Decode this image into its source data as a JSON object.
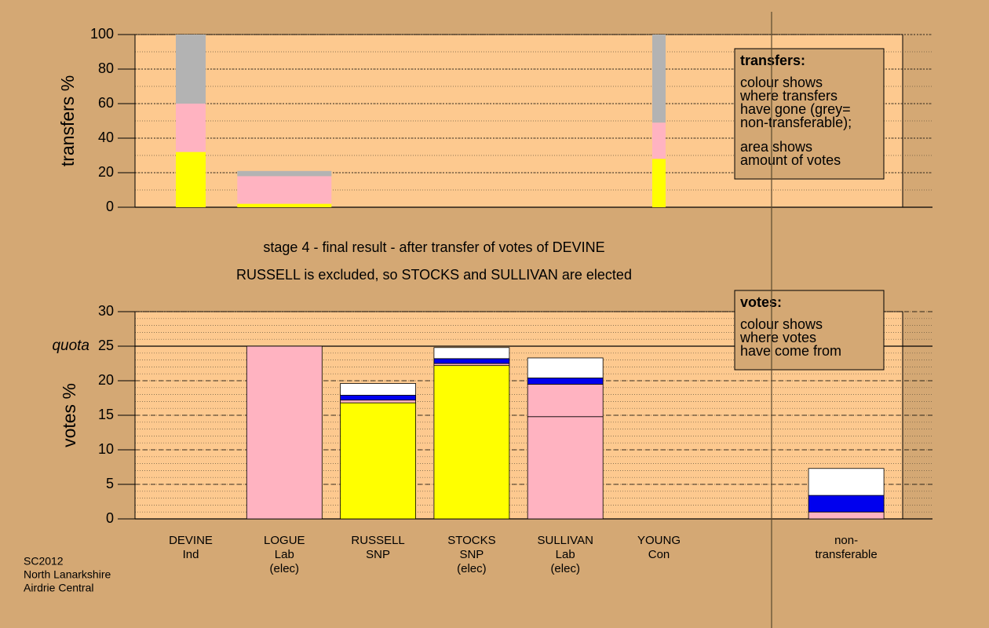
{
  "chart_data": [
    {
      "type": "stacked-bar",
      "y_label": "transfers %",
      "ylim": [
        0,
        100
      ],
      "yticks": [
        0,
        20,
        40,
        60,
        80,
        100
      ],
      "grid": true,
      "minor_grid_step": 10,
      "series": [
        {
          "color": "#ffff00",
          "values": [
            32,
            2,
            null,
            null,
            null,
            28,
            null,
            null
          ]
        },
        {
          "color": "#ffb3c1",
          "values": [
            28,
            16,
            null,
            null,
            null,
            21,
            null,
            null
          ]
        },
        {
          "color": "#b3b3b3",
          "values": [
            40,
            3,
            null,
            null,
            null,
            51,
            null,
            null
          ]
        }
      ],
      "box": {
        "title": "transfers:",
        "paragraphs": [
          [
            "colour shows",
            "where transfers",
            "have gone (grey=",
            "non-transferable);"
          ],
          [
            "area shows",
            "amount of votes"
          ]
        ]
      }
    },
    {
      "type": "stacked-bar",
      "y_label": "votes %",
      "subtitles": [
        "stage 4 - final result - after transfer of votes of DEVINE",
        "RUSSELL is excluded, so STOCKS and SULLIVAN are elected"
      ],
      "categories": [
        "DEVINE\nInd",
        "LOGUE\nLab\n(elec)",
        "RUSSELL\nSNP",
        "STOCKS\nSNP\n(elec)",
        "SULLIVAN\nLab\n(elec)",
        "YOUNG\nCon",
        null,
        "non-\ntransferable"
      ],
      "ylim": [
        0,
        30
      ],
      "yticks": [
        0,
        5,
        10,
        15,
        20,
        25,
        30
      ],
      "grid": true,
      "minor_grid_step": 1,
      "annotations": [
        {
          "text": "quota",
          "y": 25
        }
      ],
      "series": [
        {
          "color": "#ffff00",
          "values": [
            0,
            0,
            16.8,
            22.2,
            0,
            0,
            null,
            0
          ]
        },
        {
          "color": "#ffb3c1",
          "values": [
            0,
            25,
            0.4,
            0.3,
            14.8,
            0,
            null,
            1.0
          ]
        },
        {
          "color": "#ffb3c1",
          "values": [
            0,
            0,
            0,
            0,
            4.7,
            0,
            null,
            0
          ]
        },
        {
          "color": "#0000ee",
          "values": [
            0,
            0,
            0.7,
            0.7,
            0.9,
            0,
            null,
            2.4
          ]
        },
        {
          "color": "#ffffff",
          "values": [
            0,
            0,
            1.7,
            1.6,
            2.9,
            0,
            null,
            3.9
          ]
        }
      ],
      "box": {
        "title": "votes:",
        "paragraphs": [
          [
            "colour shows",
            "where votes",
            "have come from"
          ]
        ]
      }
    }
  ],
  "footer": [
    "SC2012",
    "North Lanarkshire",
    "Airdrie Central"
  ]
}
